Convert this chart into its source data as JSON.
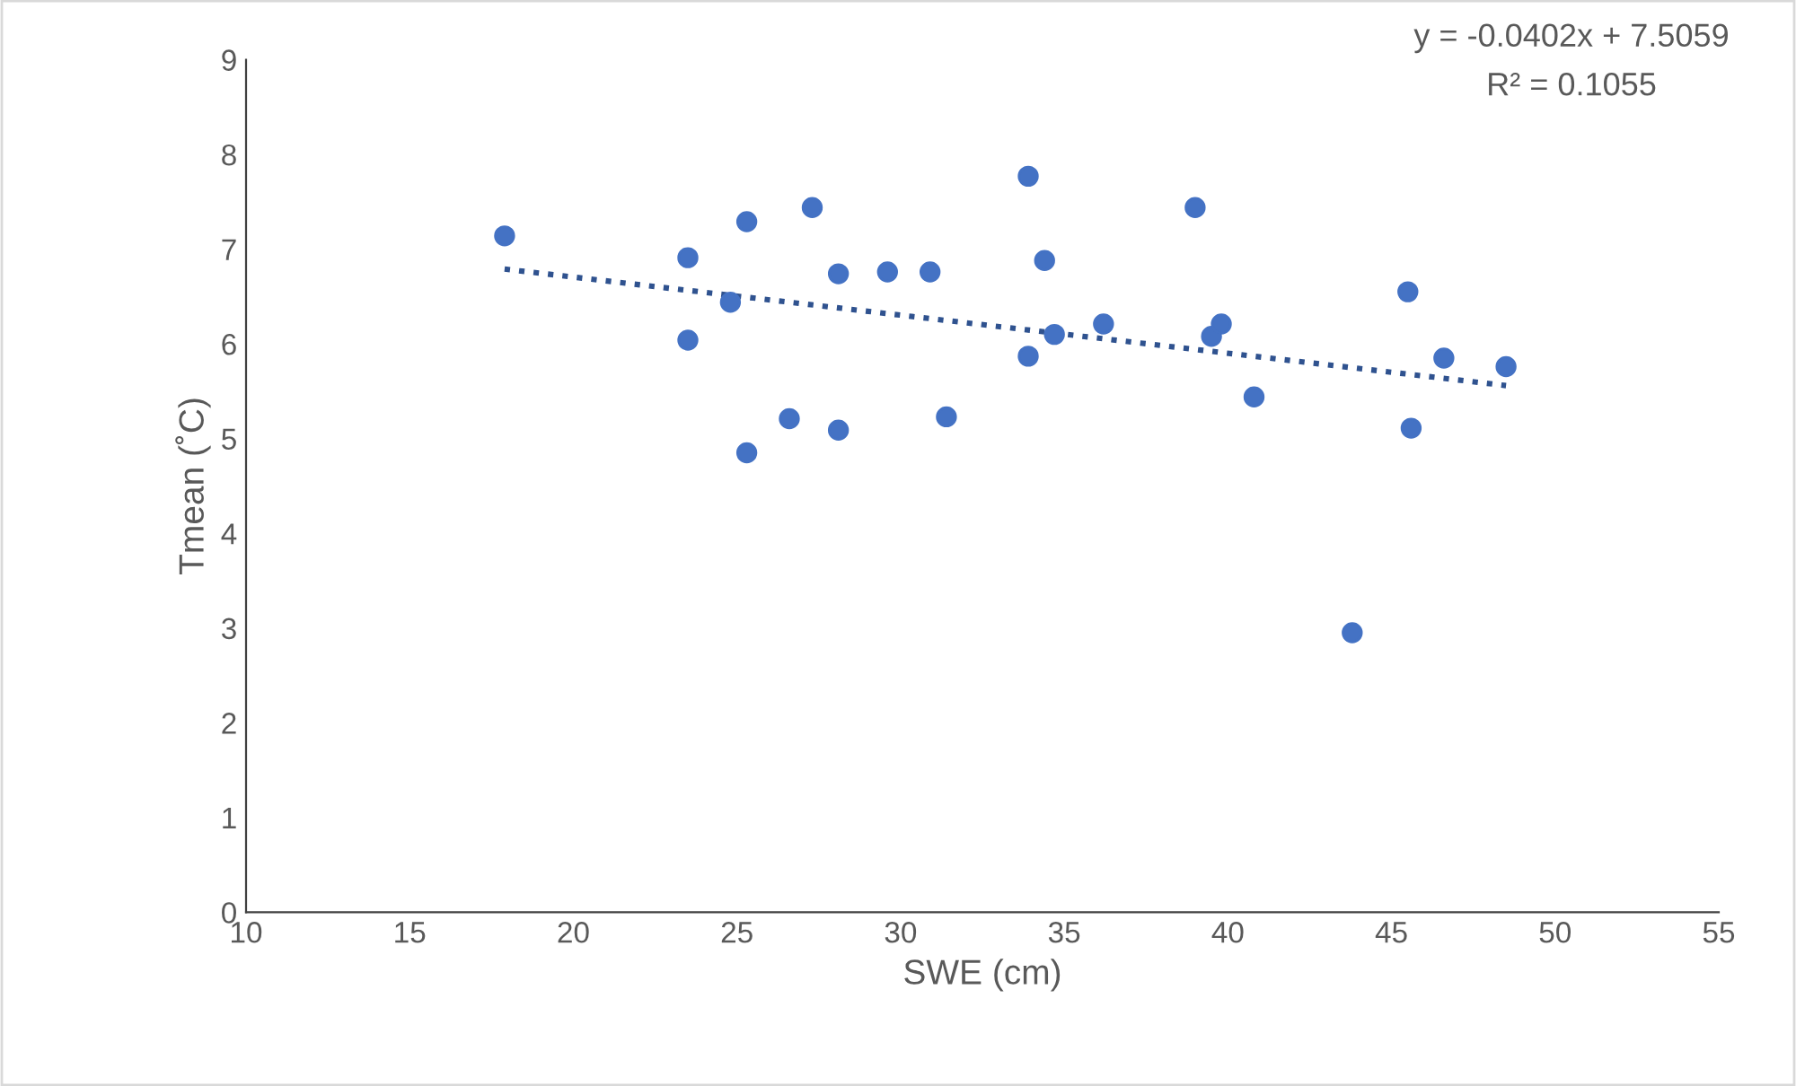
{
  "chart_data": {
    "type": "scatter",
    "xlabel": "SWE (cm)",
    "ylabel": "Tmean (˚C)",
    "xlim": [
      10,
      55
    ],
    "xticks": [
      10,
      15,
      20,
      25,
      30,
      35,
      40,
      45,
      50,
      55
    ],
    "ylim": [
      0,
      9
    ],
    "yticks": [
      0,
      1,
      2,
      3,
      4,
      5,
      6,
      7,
      8,
      9
    ],
    "grid": false,
    "legend": false,
    "annotations": [
      "y = -0.0402x + 7.5059",
      "R² = 0.1055"
    ],
    "series": [
      {
        "marker": "circle",
        "color": "#4472c4",
        "x": [
          17.9,
          23.5,
          23.5,
          24.8,
          25.3,
          25.3,
          27.3,
          26.6,
          28.1,
          28.1,
          29.6,
          30.9,
          31.4,
          33.9,
          33.9,
          34.4,
          34.7,
          36.2,
          39.0,
          39.5,
          39.8,
          40.8,
          43.8,
          45.5,
          45.6,
          46.6,
          48.5
        ],
        "values": [
          7.14,
          6.91,
          6.04,
          6.44,
          7.29,
          4.85,
          7.44,
          5.21,
          6.74,
          5.09,
          6.76,
          6.76,
          5.23,
          7.77,
          5.87,
          6.88,
          6.1,
          6.21,
          7.44,
          6.08,
          6.21,
          5.44,
          2.95,
          6.55,
          5.11,
          5.85,
          5.76
        ]
      },
      {
        "type": "line",
        "color": "#2f528f",
        "line_style": "dotted",
        "marker": "none",
        "x": [
          17.9,
          48.5
        ],
        "values": [
          6.79,
          5.56
        ]
      }
    ]
  }
}
